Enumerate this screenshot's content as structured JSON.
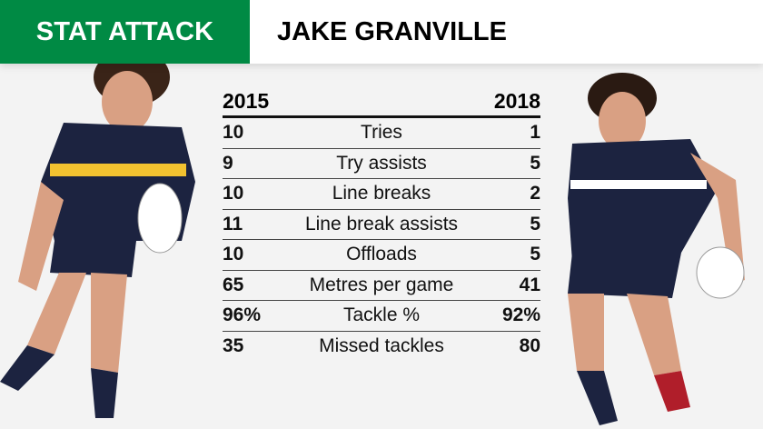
{
  "header": {
    "tag": "STAT ATTACK",
    "player_name": "JAKE GRANVILLE"
  },
  "colors": {
    "brand_green": "#008a44",
    "jersey_navy": "#1c2340"
  },
  "table": {
    "left_year": "2015",
    "right_year": "2018",
    "rows": [
      {
        "stat": "Tries",
        "left": "10",
        "right": "1"
      },
      {
        "stat": "Try assists",
        "left": "9",
        "right": "5"
      },
      {
        "stat": "Line breaks",
        "left": "10",
        "right": "2"
      },
      {
        "stat": "Line break assists",
        "left": "11",
        "right": "5"
      },
      {
        "stat": "Offloads",
        "left": "10",
        "right": "5"
      },
      {
        "stat": "Metres per game",
        "left": "65",
        "right": "41"
      },
      {
        "stat": "Tackle %",
        "left": "96%",
        "right": "92%"
      },
      {
        "stat": "Missed tackles",
        "left": "35",
        "right": "80"
      }
    ]
  }
}
